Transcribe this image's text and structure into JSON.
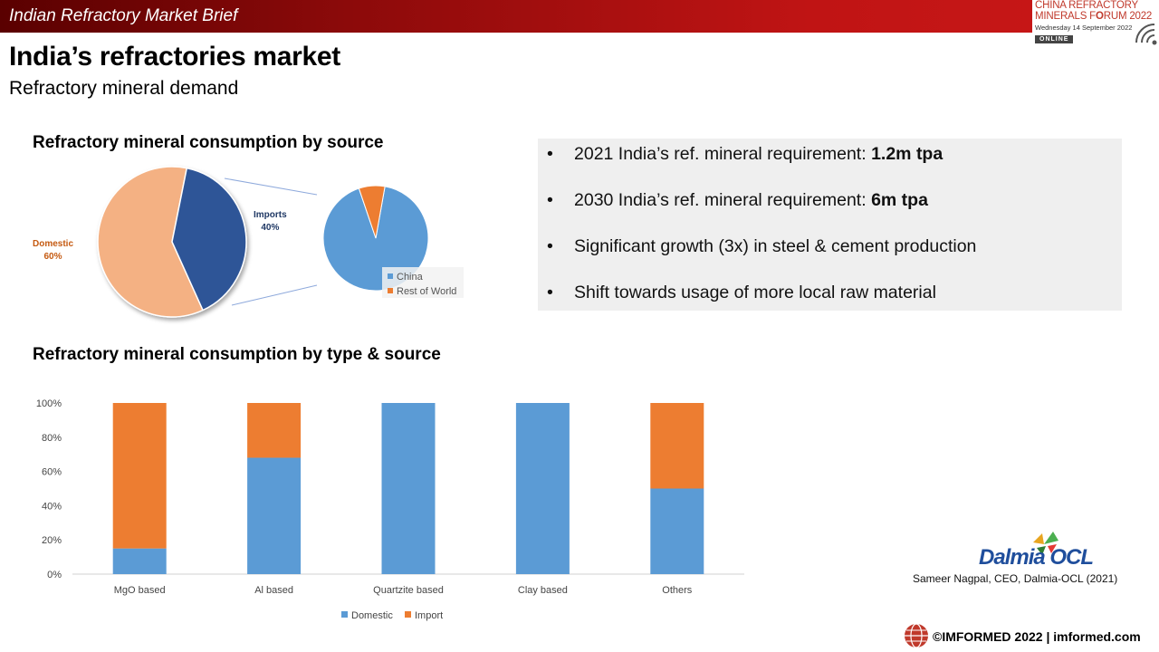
{
  "header": {
    "brief": "Indian Refractory Market Brief",
    "forum_line1": "CHINA REFRACTORY",
    "forum_line2a": "MINERALS F",
    "forum_line2b": "RUM 2022",
    "forum_date": "Wednesday 14 September 2022",
    "forum_online": "ONLINE"
  },
  "page": {
    "title": "India’s refractories market",
    "subtitle": "Refractory mineral demand"
  },
  "section1_title": "Refractory mineral consumption by source",
  "section2_title": "Refractory mineral consumption by type & source",
  "pie": {
    "domestic_label": "Domestic",
    "domestic_value": "60%",
    "imports_label": "Imports",
    "imports_value": "40%",
    "legend_china": "China",
    "legend_row": "Rest of World"
  },
  "bullets": {
    "b1_text": "2021 India’s ref. mineral requirement: ",
    "b1_bold": "1.2m tpa",
    "b2_text": "2030 India’s ref. mineral requirement: ",
    "b2_bold": "6m tpa",
    "b3_text": "Significant growth (3x) in steel & cement production",
    "b4_text": "Shift towards usage of more local raw material",
    "bullet_char": "•"
  },
  "chart_data": [
    {
      "type": "pie",
      "title": "Refractory mineral consumption by source",
      "labels": [
        "Domestic",
        "Imports"
      ],
      "values": [
        60,
        40
      ],
      "colors": [
        "#f4b183",
        "#2f5597"
      ]
    },
    {
      "type": "pie",
      "title": "",
      "labels": [
        "China",
        "Rest of World"
      ],
      "values": [
        92,
        8
      ],
      "colors": [
        "#5b9bd5",
        "#ed7d31"
      ]
    },
    {
      "type": "bar",
      "stacked": true,
      "title": "Refractory mineral consumption by type & source",
      "categories": [
        "MgO based",
        "Al based",
        "Quartzite based",
        "Clay based",
        "Others"
      ],
      "series": [
        {
          "name": "Domestic",
          "values": [
            15,
            68,
            100,
            100,
            50
          ],
          "color": "#5b9bd5"
        },
        {
          "name": "Import",
          "values": [
            85,
            32,
            0,
            0,
            50
          ],
          "color": "#ed7d31"
        }
      ],
      "yticks": [
        "0%",
        "20%",
        "40%",
        "60%",
        "80%",
        "100%"
      ],
      "ylim": [
        0,
        100
      ],
      "legend": "bottom"
    }
  ],
  "logos": {
    "dalmia": "Dalmia OCL",
    "caption": "Sameer Nagpal, CEO, Dalmia-OCL (2021)"
  },
  "footer": {
    "text": "©IMFORMED 2022  | imformed.com"
  }
}
